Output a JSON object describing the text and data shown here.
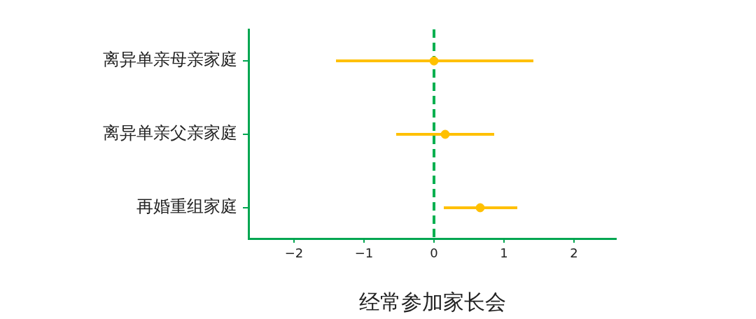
{
  "chart_data": {
    "type": "scatter",
    "orientation": "horizontal",
    "xlabel": "经常参加家长会",
    "categories": [
      "离异单亲母亲家庭",
      "离异单亲父亲家庭",
      "再婚重组家庭"
    ],
    "values": [
      0.0,
      0.16,
      0.66
    ],
    "errors": [
      [
        -1.4,
        1.42
      ],
      [
        -0.54,
        0.86
      ],
      [
        0.14,
        1.19
      ]
    ],
    "color": "#ffc000",
    "marker": "circle",
    "xlim": [
      -2.65,
      2.6
    ],
    "xticks": [
      {
        "value": -2,
        "label": "−2"
      },
      {
        "value": -1,
        "label": "−1"
      },
      0,
      1,
      2
    ],
    "ref_lines": [
      {
        "axis": "x",
        "value": 0,
        "color": "#00b050",
        "line_style": "dashed"
      }
    ]
  }
}
